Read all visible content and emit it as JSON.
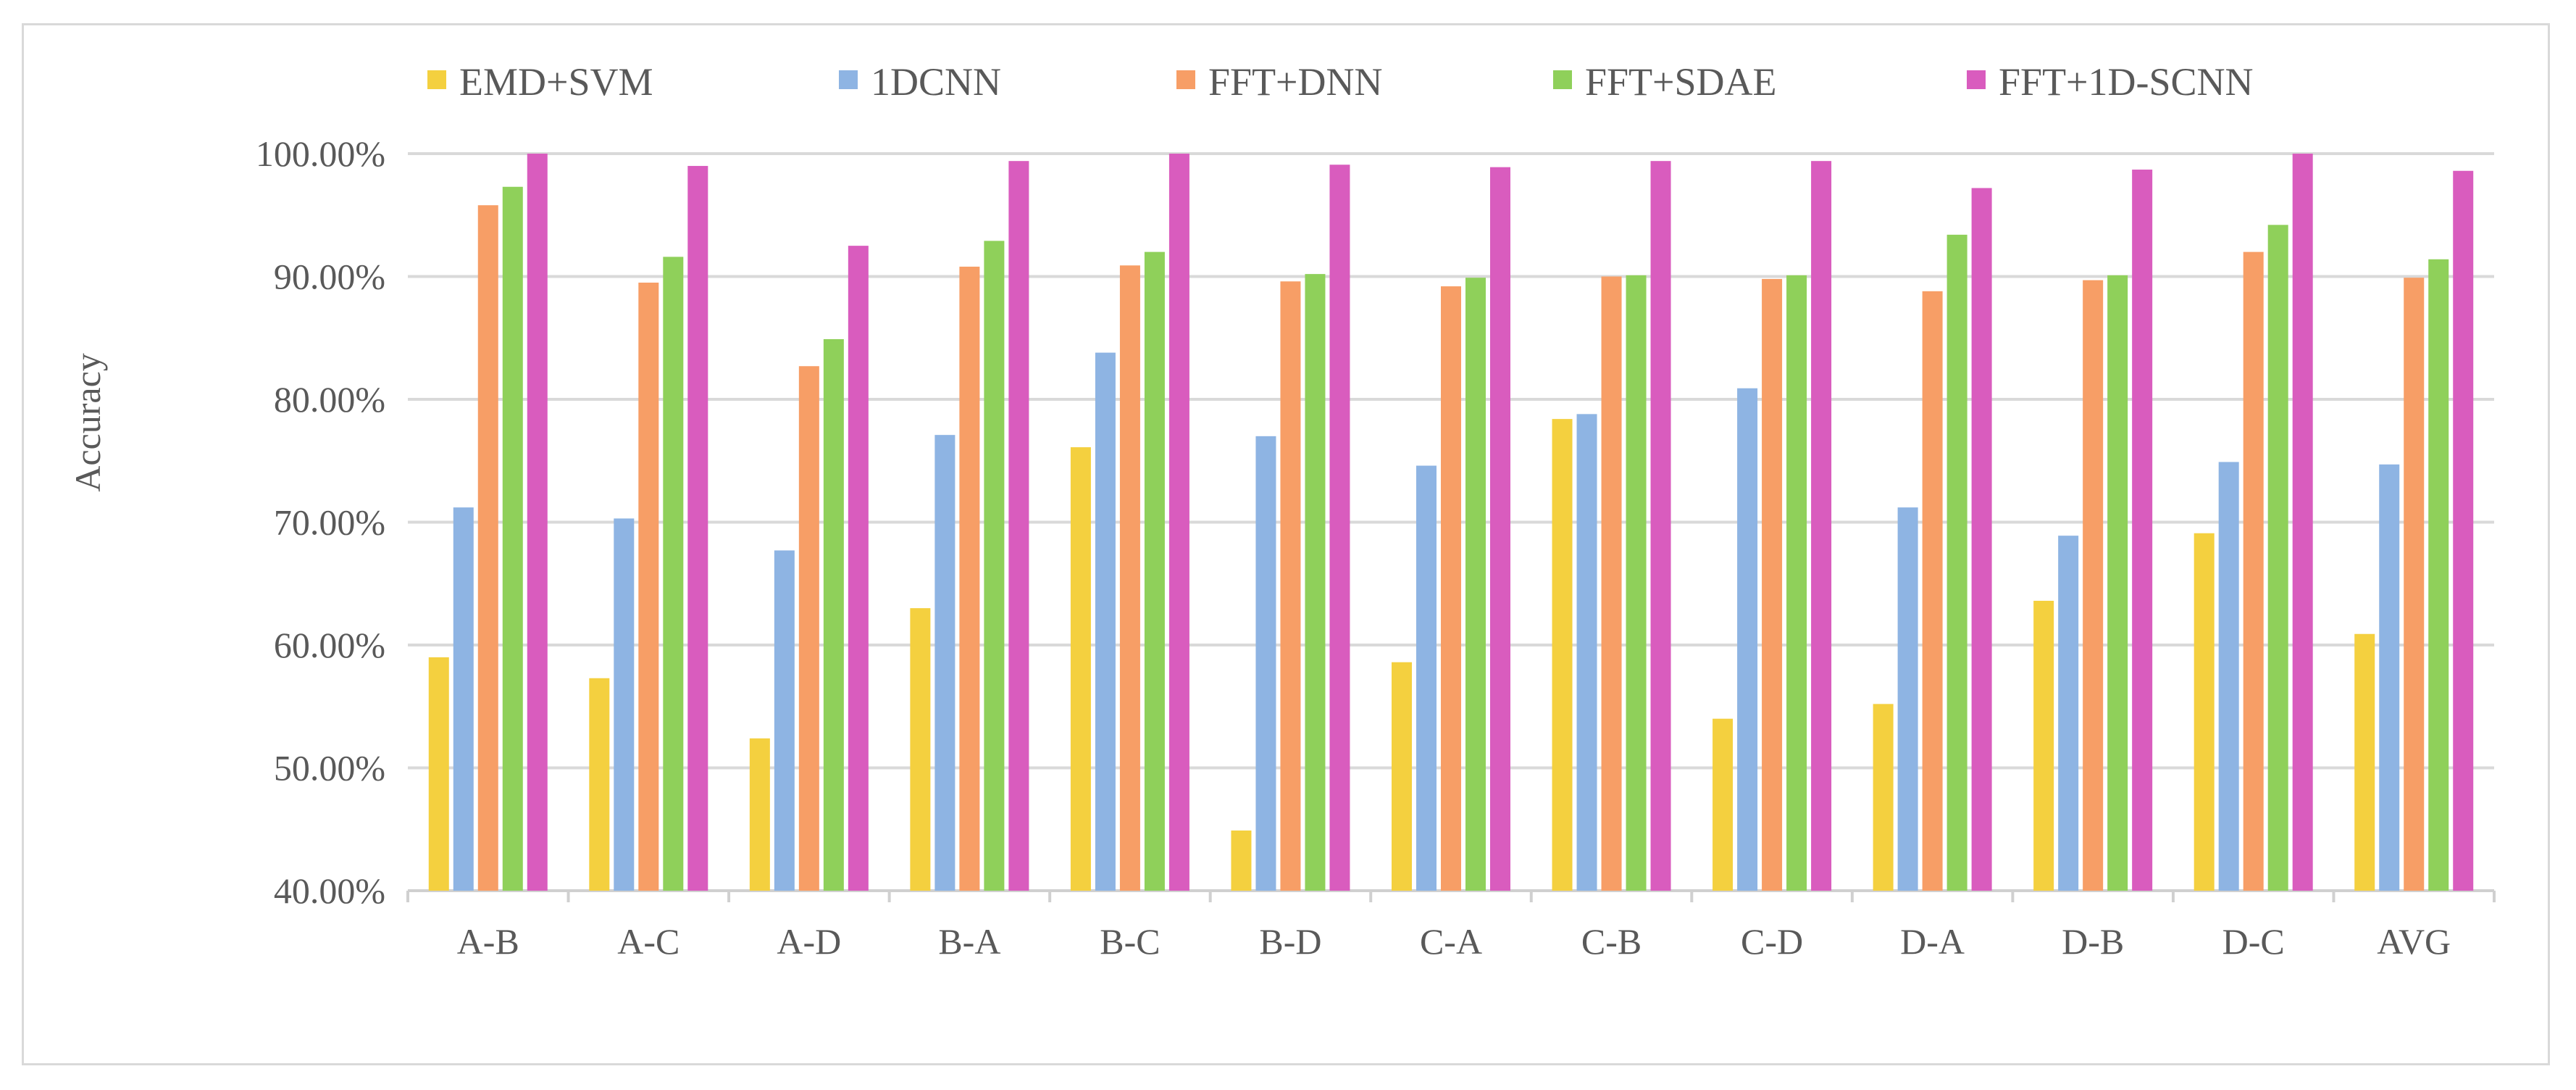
{
  "chart_data": {
    "type": "bar",
    "title": "",
    "xlabel": "",
    "ylabel": "Accuracy",
    "ylim": [
      40,
      100
    ],
    "ytick_step": 10,
    "ytick_labels": [
      "40.00%",
      "50.00%",
      "60.00%",
      "70.00%",
      "80.00%",
      "90.00%",
      "100.00%"
    ],
    "grid": true,
    "legend_position": "top",
    "categories": [
      "A-B",
      "A-C",
      "A-D",
      "B-A",
      "B-C",
      "B-D",
      "C-A",
      "C-B",
      "C-D",
      "D-A",
      "D-B",
      "D-C",
      "AVG"
    ],
    "series": [
      {
        "name": "EMD+SVM",
        "color": "#F4D03F",
        "values": [
          59.0,
          57.3,
          52.4,
          63.0,
          76.1,
          44.9,
          58.6,
          78.4,
          54.0,
          55.2,
          63.6,
          69.1,
          60.9
        ]
      },
      {
        "name": "1DCNN",
        "color": "#8EB4E3",
        "values": [
          71.2,
          70.3,
          67.7,
          77.1,
          83.8,
          77.0,
          74.6,
          78.8,
          80.9,
          71.2,
          68.9,
          74.9,
          74.7
        ]
      },
      {
        "name": "FFT+DNN",
        "color": "#F79E66",
        "values": [
          95.8,
          89.5,
          82.7,
          90.8,
          90.9,
          89.6,
          89.2,
          90.0,
          89.8,
          88.8,
          89.7,
          92.0,
          89.9
        ]
      },
      {
        "name": "FFT+SDAE",
        "color": "#8FD05A",
        "values": [
          97.3,
          91.6,
          84.9,
          92.9,
          92.0,
          90.2,
          89.9,
          90.1,
          90.1,
          93.4,
          90.1,
          94.2,
          91.4
        ]
      },
      {
        "name": "FFT+1D-SCNN",
        "color": "#D95CBE",
        "values": [
          100.0,
          99.0,
          92.5,
          99.4,
          100.0,
          99.1,
          98.9,
          99.4,
          99.4,
          97.2,
          98.7,
          100.0,
          98.6
        ]
      }
    ]
  }
}
